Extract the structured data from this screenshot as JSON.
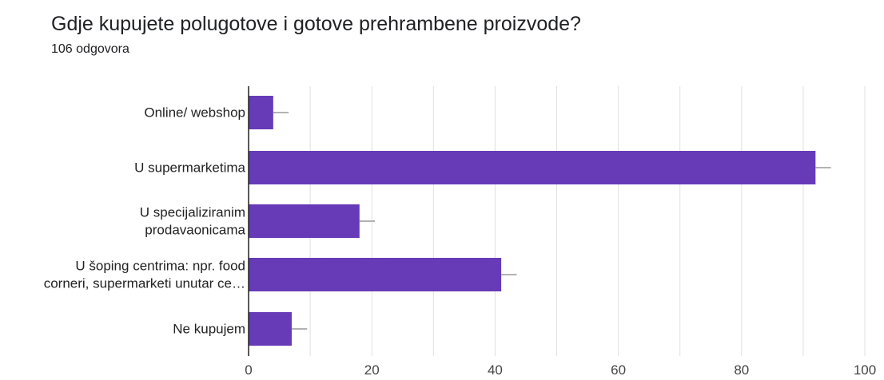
{
  "chart_data": {
    "type": "bar",
    "orientation": "horizontal",
    "title": "Gdje kupujete polugotove i gotove prehrambene proizvode?",
    "subtitle": "106 odgovora",
    "categories": [
      [
        "Online/ webshop"
      ],
      [
        "U supermarketima"
      ],
      [
        "U specijaliziranim",
        "prodavaonicama"
      ],
      [
        "U šoping centrima: npr. food",
        "corneri, supermarketi unutar ce…"
      ],
      [
        "Ne kupujem"
      ]
    ],
    "values": [
      4,
      92,
      18,
      41,
      7
    ],
    "error": [
      2.5,
      2.5,
      2.5,
      2.5,
      2.5
    ],
    "xlim": [
      0,
      100
    ],
    "xticks": [
      "0",
      "20",
      "40",
      "60",
      "80",
      "100"
    ],
    "xtick_values": [
      0,
      20,
      40,
      60,
      80,
      100
    ],
    "grid": true,
    "colors": {
      "bar": "#673ab7",
      "error": "#999999",
      "grid": "#e0e0e0",
      "axis": "#222222"
    }
  }
}
